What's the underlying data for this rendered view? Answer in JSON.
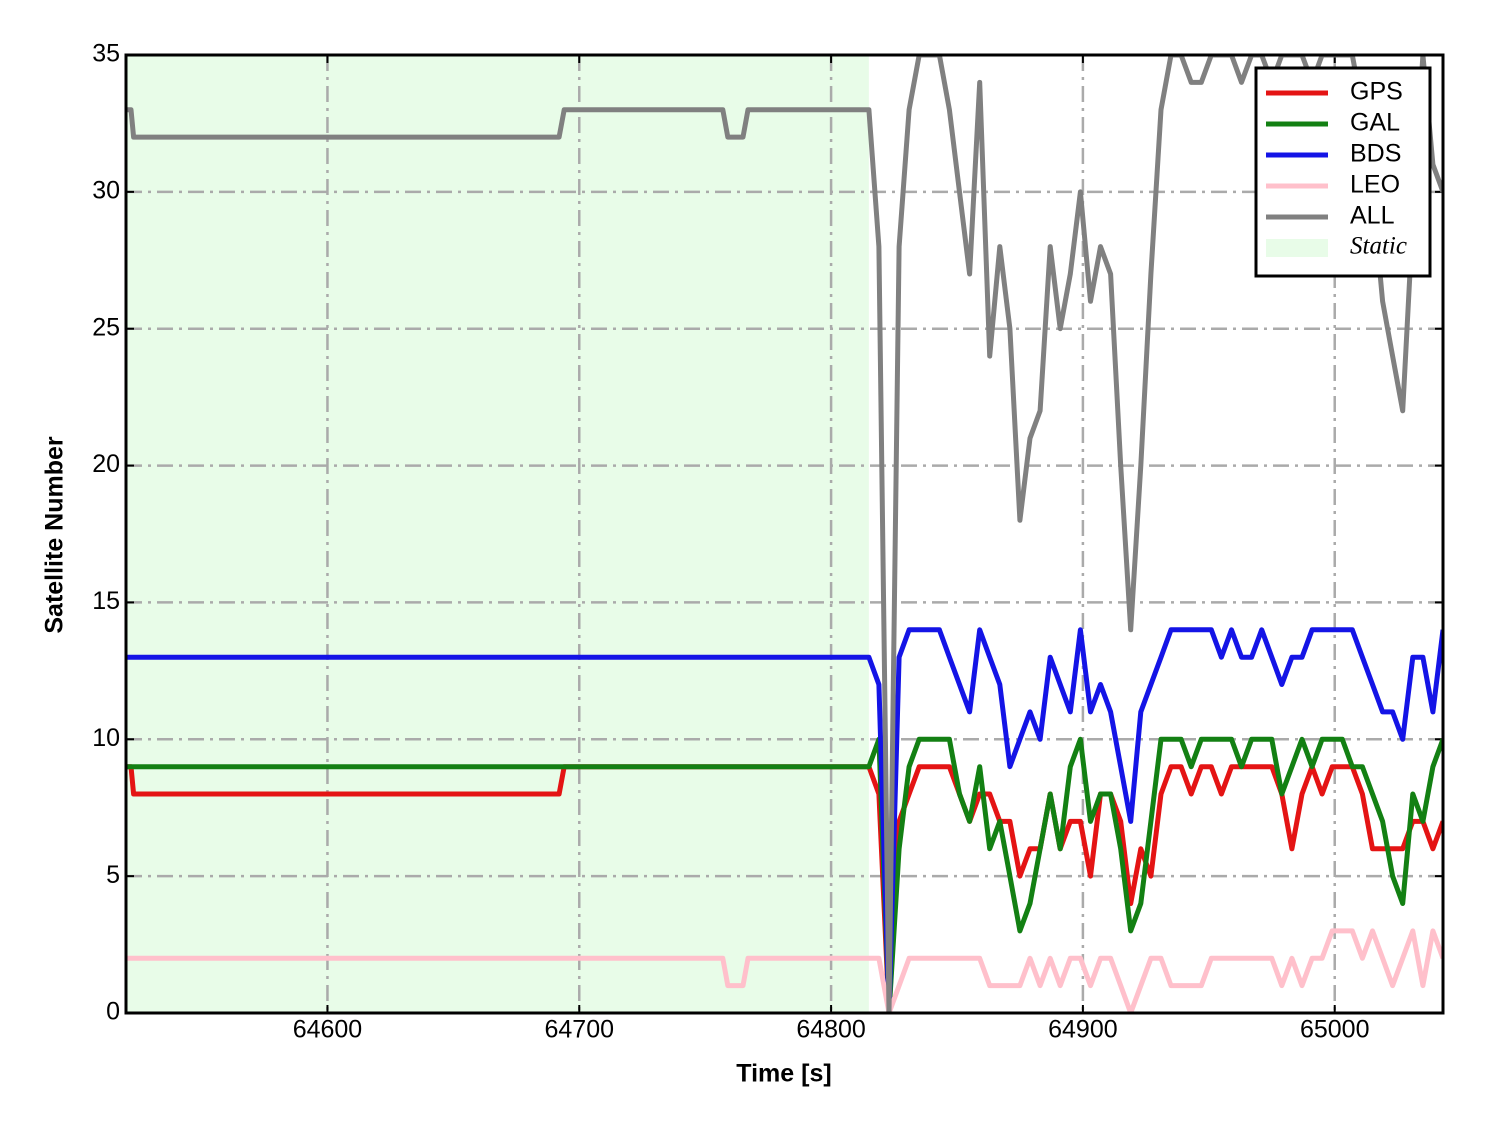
{
  "chart_data": {
    "type": "line",
    "xlabel": "Time [s]",
    "ylabel": "Satellite Number",
    "x": [
      64520,
      64522,
      64523,
      64692,
      64694,
      64757,
      64759,
      64765,
      64767,
      64815,
      64819,
      64823,
      64827,
      64831,
      64835,
      64839,
      64843,
      64847,
      64851,
      64855,
      64859,
      64863,
      64867,
      64871,
      64875,
      64879,
      64883,
      64887,
      64891,
      64895,
      64899,
      64903,
      64907,
      64911,
      64915,
      64919,
      64923,
      64927,
      64931,
      64935,
      64939,
      64943,
      64947,
      64951,
      64955,
      64959,
      64963,
      64967,
      64971,
      64975,
      64979,
      64983,
      64987,
      64991,
      64995,
      64999,
      65003,
      65007,
      65011,
      65015,
      65019,
      65023,
      65027,
      65031,
      65035,
      65039,
      65043
    ],
    "series": [
      {
        "name": "GPS",
        "color": "#e41414",
        "values": [
          9,
          9,
          8,
          8,
          9,
          9,
          9,
          9,
          9,
          9,
          8,
          0,
          7,
          8,
          9,
          9,
          9,
          9,
          8,
          7,
          8,
          8,
          7,
          7,
          5,
          6,
          6,
          8,
          6,
          7,
          7,
          5,
          8,
          8,
          7,
          4,
          6,
          5,
          8,
          9,
          9,
          8,
          9,
          9,
          8,
          9,
          9,
          9,
          9,
          9,
          8,
          6,
          8,
          9,
          8,
          9,
          9,
          9,
          8,
          6,
          6,
          6,
          6,
          7,
          7,
          6,
          7
        ]
      },
      {
        "name": "GAL",
        "color": "#138013",
        "values": [
          9,
          9,
          9,
          9,
          9,
          9,
          9,
          9,
          9,
          9,
          10,
          0,
          6,
          9,
          10,
          10,
          10,
          10,
          8,
          7,
          9,
          6,
          7,
          5,
          3,
          4,
          6,
          8,
          6,
          9,
          10,
          7,
          8,
          8,
          6,
          3,
          4,
          7,
          10,
          10,
          10,
          9,
          10,
          10,
          10,
          10,
          9,
          10,
          10,
          10,
          8,
          9,
          10,
          9,
          10,
          10,
          10,
          9,
          9,
          8,
          7,
          5,
          4,
          8,
          7,
          9,
          10
        ]
      },
      {
        "name": "BDS",
        "color": "#1414e6",
        "values": [
          13,
          13,
          13,
          13,
          13,
          13,
          13,
          13,
          13,
          13,
          12,
          0,
          13,
          14,
          14,
          14,
          14,
          13,
          12,
          11,
          14,
          13,
          12,
          9,
          10,
          11,
          10,
          13,
          12,
          11,
          14,
          11,
          12,
          11,
          9,
          7,
          11,
          12,
          13,
          14,
          14,
          14,
          14,
          14,
          13,
          14,
          13,
          13,
          14,
          13,
          12,
          13,
          13,
          14,
          14,
          14,
          14,
          14,
          13,
          12,
          11,
          11,
          10,
          13,
          13,
          11,
          14
        ]
      },
      {
        "name": "LEO",
        "color": "#ffc0cb",
        "values": [
          2,
          2,
          2,
          2,
          2,
          2,
          1,
          1,
          2,
          2,
          2,
          0,
          1,
          2,
          2,
          2,
          2,
          2,
          2,
          2,
          2,
          1,
          1,
          1,
          1,
          2,
          1,
          2,
          1,
          2,
          2,
          1,
          2,
          2,
          1,
          0,
          1,
          2,
          2,
          1,
          1,
          1,
          1,
          2,
          2,
          2,
          2,
          2,
          2,
          2,
          1,
          2,
          1,
          2,
          2,
          3,
          3,
          3,
          2,
          3,
          2,
          1,
          2,
          3,
          1,
          3,
          2
        ]
      },
      {
        "name": "ALL",
        "color": "#808080",
        "values": [
          33,
          33,
          32,
          32,
          33,
          33,
          32,
          32,
          33,
          33,
          28,
          0,
          28,
          33,
          35,
          35,
          35,
          33,
          30,
          27,
          34,
          24,
          28,
          25,
          18,
          21,
          22,
          28,
          25,
          27,
          30,
          26,
          28,
          27,
          20,
          14,
          20,
          27,
          33,
          35,
          35,
          34,
          34,
          35,
          35,
          35,
          34,
          35,
          35,
          34,
          35,
          35,
          35,
          34,
          35,
          35,
          35,
          35,
          33,
          30,
          26,
          24,
          22,
          29,
          35,
          31,
          30
        ]
      }
    ],
    "shaded_region": {
      "label": "Static",
      "xrange": [
        64520,
        64815
      ],
      "color": "#e8fce8"
    },
    "xlim": [
      64520,
      65043
    ],
    "ylim": [
      0,
      35
    ],
    "xticks": [
      64600,
      64700,
      64800,
      64900,
      65000
    ],
    "yticks": [
      0,
      5,
      10,
      15,
      20,
      25,
      30,
      35
    ],
    "grid": true,
    "legend": "upper right"
  }
}
